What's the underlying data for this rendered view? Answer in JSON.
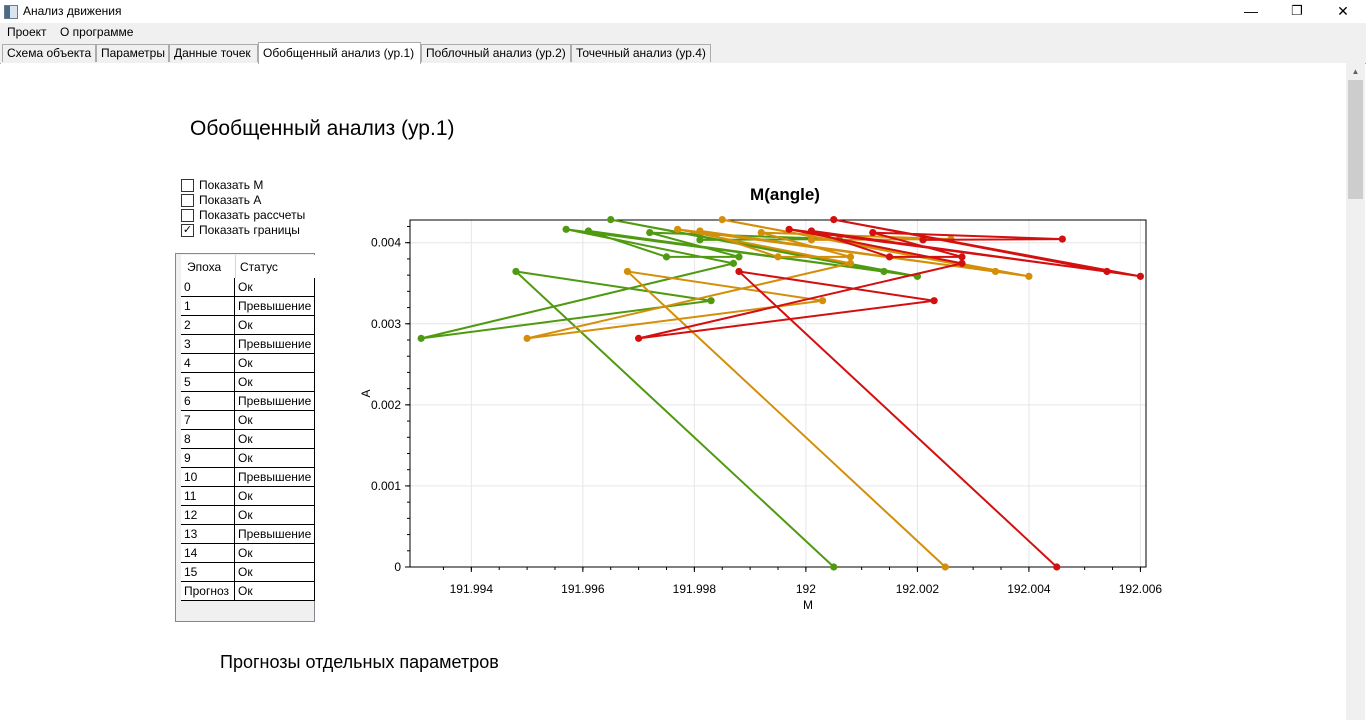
{
  "window": {
    "title": "Анализ движения",
    "minimize_glyph": "—",
    "restore_glyph": "❐",
    "close_glyph": "✕"
  },
  "menu": [
    "Проект",
    "О программе"
  ],
  "tabs": [
    "Схема объекта",
    "Параметры",
    "Данные точек",
    "Обобщенный анализ (ур.1)",
    "Поблочный анализ (ур.2)",
    "Точечный анализ (ур.4)"
  ],
  "active_tab": 3,
  "heading": "Обобщенный анализ (ур.1)",
  "options": [
    {
      "label": "Показать М",
      "checked": false
    },
    {
      "label": "Показать А",
      "checked": false
    },
    {
      "label": "Показать рассчеты",
      "checked": false
    },
    {
      "label": "Показать границы",
      "checked": true
    }
  ],
  "status_table": {
    "headers": [
      "Эпоха",
      "Статус"
    ],
    "rows": [
      [
        "0",
        "Ок"
      ],
      [
        "1",
        "Превышение"
      ],
      [
        "2",
        "Ок"
      ],
      [
        "3",
        "Превышение"
      ],
      [
        "4",
        "Ок"
      ],
      [
        "5",
        "Ок"
      ],
      [
        "6",
        "Превышение"
      ],
      [
        "7",
        "Ок"
      ],
      [
        "8",
        "Ок"
      ],
      [
        "9",
        "Ок"
      ],
      [
        "10",
        "Превышение"
      ],
      [
        "11",
        "Ок"
      ],
      [
        "12",
        "Ок"
      ],
      [
        "13",
        "Превышение"
      ],
      [
        "14",
        "Ок"
      ],
      [
        "15",
        "Ок"
      ],
      [
        "Прогноз",
        "Ок"
      ]
    ]
  },
  "subheading": "Прогнозы отдельных параметров",
  "chart_data": {
    "type": "line",
    "title": "M(angle)",
    "xlabel": "M",
    "ylabel": "A",
    "xlim": [
      191.9929,
      192.0061
    ],
    "ylim": [
      0,
      0.00428
    ],
    "xticks": [
      "191.994",
      "191.996",
      "191.998",
      "192",
      "192.002",
      "192.004",
      "192.006"
    ],
    "xtick_values": [
      191.994,
      191.996,
      191.998,
      192.0,
      192.002,
      192.004,
      192.006
    ],
    "yticks": [
      "0",
      "0.001",
      "0.002",
      "0.003",
      "0.004"
    ],
    "ytick_values": [
      0,
      0.001,
      0.002,
      0.003,
      0.004
    ],
    "grid": true,
    "series": [
      {
        "color": "#4f9a10",
        "x": [
          192.0005,
          191.9948,
          191.9983,
          191.9931,
          191.9987,
          191.9957,
          192.0014,
          191.9965,
          192.002,
          191.9961,
          191.9975,
          191.9988,
          191.9972,
          192.0006,
          191.9981
        ],
        "y": [
          0,
          0.003645,
          0.003285,
          0.00282,
          0.003745,
          0.004165,
          0.003645,
          0.004285,
          0.003585,
          0.004145,
          0.003825,
          0.003825,
          0.004125,
          0.004045,
          0.004035
        ]
      },
      {
        "color": "#d48f0a",
        "x": [
          192.0025,
          191.9968,
          192.0003,
          191.995,
          192.0008,
          191.9977,
          192.0034,
          191.9985,
          192.004,
          191.9981,
          191.9995,
          192.0008,
          191.9992,
          192.0026,
          192.0001
        ],
        "y": [
          0,
          0.003645,
          0.003285,
          0.00282,
          0.003745,
          0.004165,
          0.003645,
          0.004285,
          0.003585,
          0.004145,
          0.003825,
          0.003825,
          0.004125,
          0.004045,
          0.004035
        ]
      },
      {
        "color": "#d40f0f",
        "x": [
          192.0045,
          191.9988,
          192.0023,
          191.997,
          192.0028,
          191.9997,
          192.0054,
          192.0005,
          192.006,
          192.0001,
          192.0015,
          192.0028,
          192.0012,
          192.0046,
          192.0021
        ],
        "y": [
          0,
          0.003645,
          0.003285,
          0.00282,
          0.003745,
          0.004165,
          0.003645,
          0.004285,
          0.003585,
          0.004145,
          0.003825,
          0.003825,
          0.004125,
          0.004045,
          0.004035
        ]
      }
    ]
  }
}
